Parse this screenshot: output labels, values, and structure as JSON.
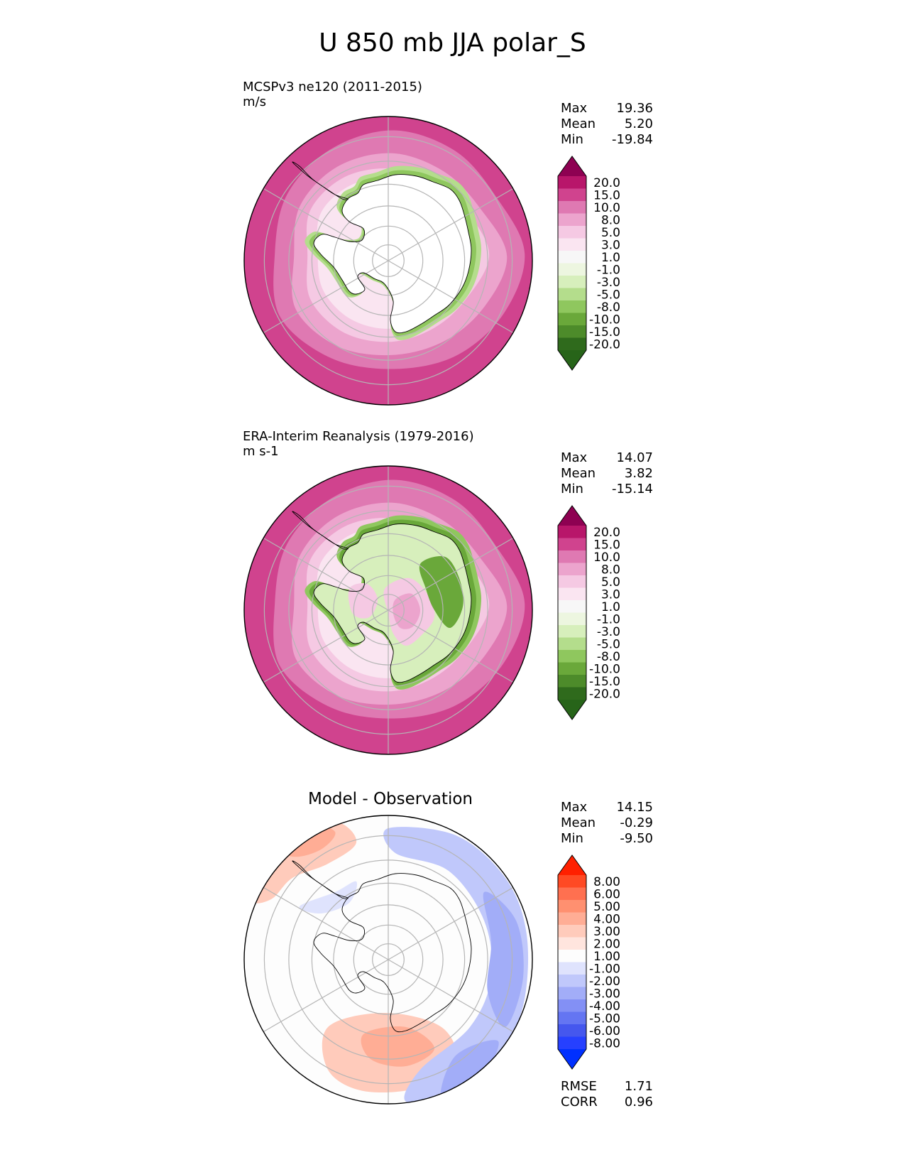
{
  "title": "U 850 mb JJA polar_S",
  "panels": [
    {
      "id": "model",
      "title_line1": "MCSPv3 ne120 (2011-2015)",
      "title_line2": "m/s",
      "stats": [
        {
          "label": "Max",
          "value": "19.36"
        },
        {
          "label": "Mean",
          "value": "5.20"
        },
        {
          "label": "Min",
          "value": "-19.84"
        }
      ],
      "colorbar": {
        "labels": [
          "20.0",
          "15.0",
          "10.0",
          "8.0",
          "5.0",
          "3.0",
          "1.0",
          "-1.0",
          "-3.0",
          "-5.0",
          "-8.0",
          "-10.0",
          "-15.0",
          "-20.0"
        ],
        "colors": [
          "#8e0152",
          "#b8166a",
          "#d0438e",
          "#df79b2",
          "#eca4cd",
          "#f5c9e3",
          "#fae5f1",
          "#f7f7f7",
          "#edf6e0",
          "#d7efbc",
          "#b4dd8c",
          "#8fc75e",
          "#6aa83a",
          "#4d8b2a",
          "#2f6a1c",
          "#276419"
        ]
      }
    },
    {
      "id": "obs",
      "title_line1": "ERA-Interim Reanalysis (1979-2016)",
      "title_line2": "m s-1",
      "stats": [
        {
          "label": "Max",
          "value": "14.07"
        },
        {
          "label": "Mean",
          "value": "3.82"
        },
        {
          "label": "Min",
          "value": "-15.14"
        }
      ],
      "colorbar": {
        "labels": [
          "20.0",
          "15.0",
          "10.0",
          "8.0",
          "5.0",
          "3.0",
          "1.0",
          "-1.0",
          "-3.0",
          "-5.0",
          "-8.0",
          "-10.0",
          "-15.0",
          "-20.0"
        ],
        "colors": [
          "#8e0152",
          "#b8166a",
          "#d0438e",
          "#df79b2",
          "#eca4cd",
          "#f5c9e3",
          "#fae5f1",
          "#f7f7f7",
          "#edf6e0",
          "#d7efbc",
          "#b4dd8c",
          "#8fc75e",
          "#6aa83a",
          "#4d8b2a",
          "#2f6a1c",
          "#276419"
        ]
      }
    },
    {
      "id": "diff",
      "title": "Model - Observation",
      "stats": [
        {
          "label": "Max",
          "value": "14.15"
        },
        {
          "label": "Mean",
          "value": "-0.29"
        },
        {
          "label": "Min",
          "value": "-9.50"
        }
      ],
      "metrics": [
        {
          "label": "RMSE",
          "value": "1.71"
        },
        {
          "label": "CORR",
          "value": "0.96"
        }
      ],
      "colorbar": {
        "labels": [
          "8.00",
          "6.00",
          "5.00",
          "4.00",
          "3.00",
          "2.00",
          "1.00",
          "-1.00",
          "-2.00",
          "-3.00",
          "-4.00",
          "-5.00",
          "-6.00",
          "-8.00"
        ],
        "colors": [
          "#ff2000",
          "#ff4a24",
          "#ff7050",
          "#ff9070",
          "#ffad95",
          "#ffcbbb",
          "#ffe5de",
          "#fdfdfd",
          "#dfe3fd",
          "#c0c8fb",
          "#a2adf8",
          "#8390f5",
          "#6475f2",
          "#4557ee",
          "#2640ff",
          "#0030ff"
        ]
      }
    }
  ]
}
